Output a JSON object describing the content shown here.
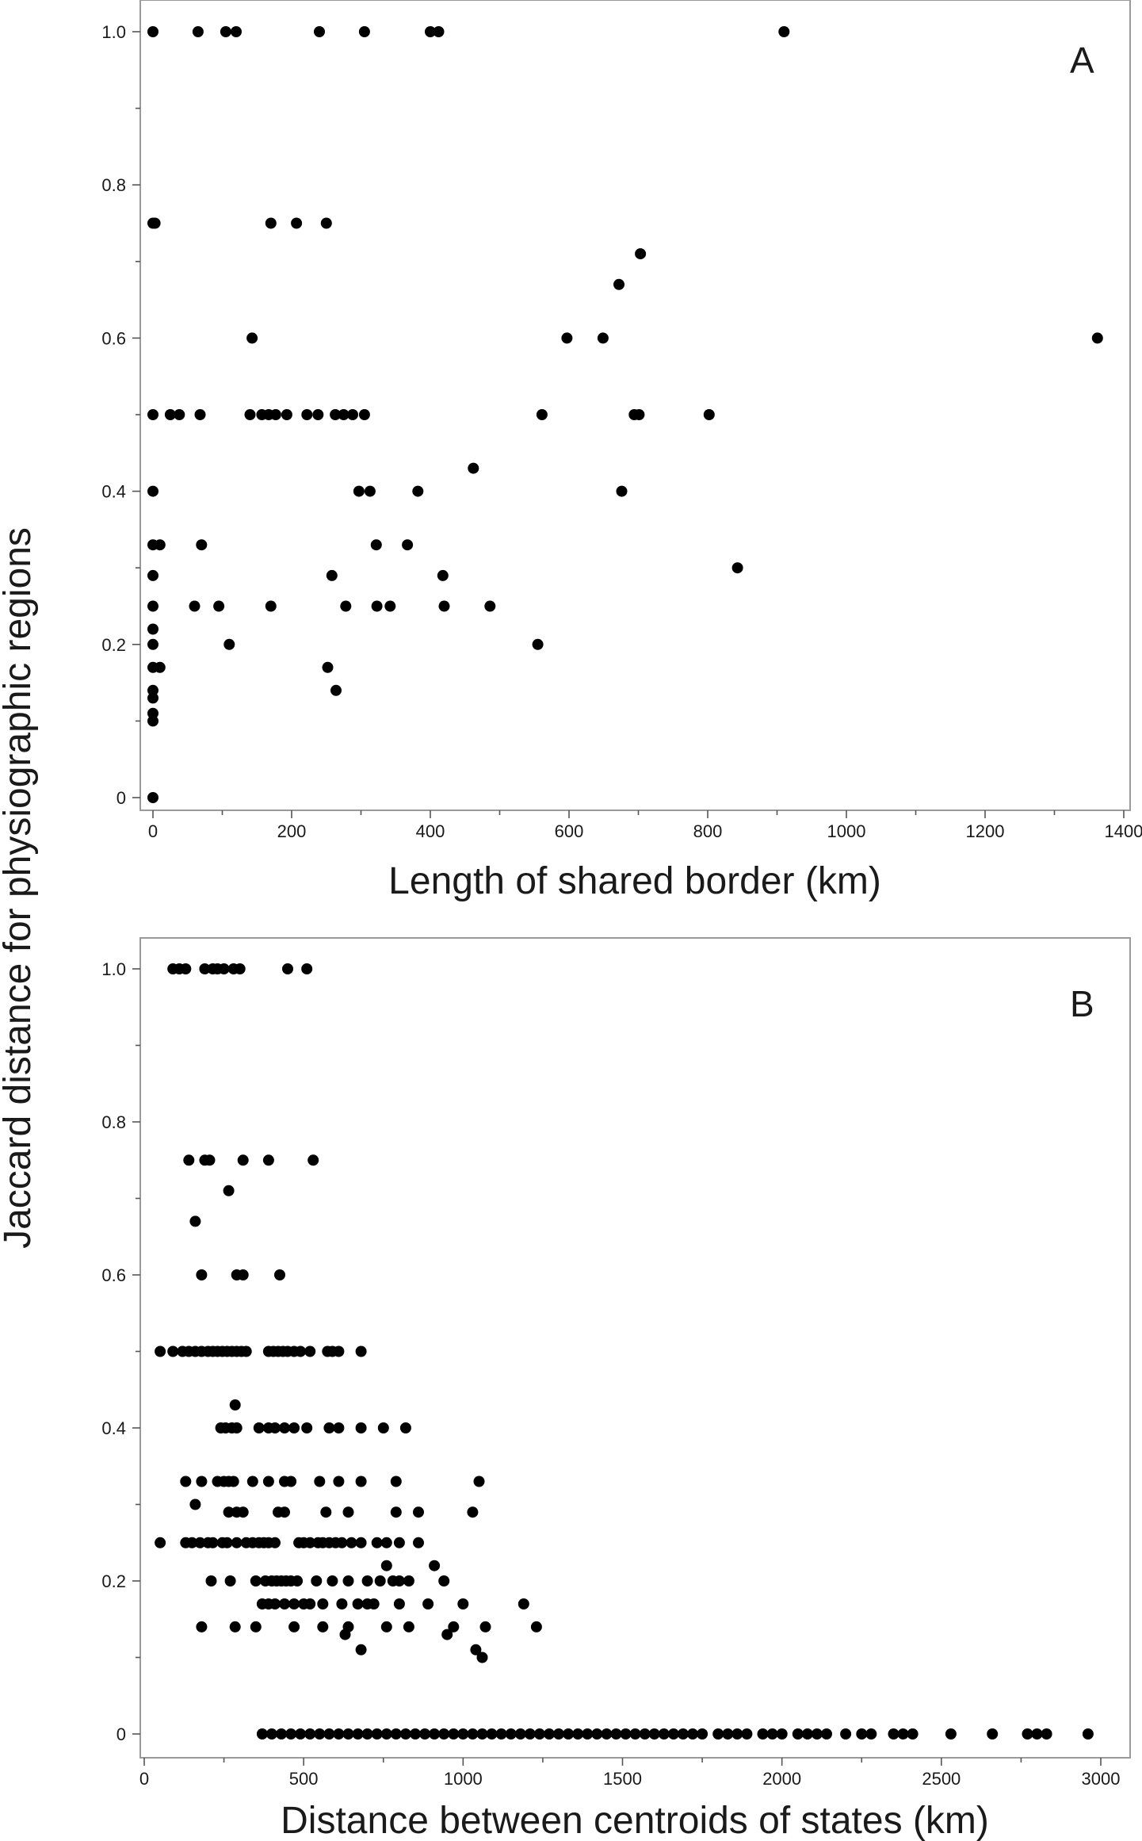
{
  "figure": {
    "ylabel": "Jaccard distance for physiographic regions"
  },
  "chart_data": [
    {
      "type": "scatter",
      "panel_label": "A",
      "xlabel": "Length of shared border (km)",
      "xlim": [
        0,
        1400
      ],
      "ylim": [
        0,
        1.0
      ],
      "x_ticks": [
        "0",
        "200",
        "400",
        "600",
        "800",
        "1000",
        "1200",
        "1400"
      ],
      "y_ticks": [
        "0",
        "0.2",
        "0.4",
        "0.6",
        "0.8",
        "1.0"
      ],
      "points": [
        [
          0,
          1.0
        ],
        [
          65,
          1.0
        ],
        [
          105,
          1.0
        ],
        [
          120,
          1.0
        ],
        [
          240,
          1.0
        ],
        [
          305,
          1.0
        ],
        [
          400,
          1.0
        ],
        [
          412,
          1.0
        ],
        [
          910,
          1.0
        ],
        [
          0,
          0.75
        ],
        [
          3,
          0.75
        ],
        [
          170,
          0.75
        ],
        [
          207,
          0.75
        ],
        [
          250,
          0.75
        ],
        [
          143,
          0.6
        ],
        [
          597,
          0.6
        ],
        [
          649,
          0.6
        ],
        [
          1362,
          0.6
        ],
        [
          703,
          0.71
        ],
        [
          672,
          0.67
        ],
        [
          0,
          0.5
        ],
        [
          25,
          0.5
        ],
        [
          38,
          0.5
        ],
        [
          68,
          0.5
        ],
        [
          140,
          0.5
        ],
        [
          157,
          0.5
        ],
        [
          167,
          0.5
        ],
        [
          177,
          0.5
        ],
        [
          193,
          0.5
        ],
        [
          222,
          0.5
        ],
        [
          238,
          0.5
        ],
        [
          263,
          0.5
        ],
        [
          275,
          0.5
        ],
        [
          288,
          0.5
        ],
        [
          305,
          0.5
        ],
        [
          561,
          0.5
        ],
        [
          694,
          0.5
        ],
        [
          701,
          0.5
        ],
        [
          802,
          0.5
        ],
        [
          0,
          0.4
        ],
        [
          297,
          0.4
        ],
        [
          313,
          0.4
        ],
        [
          382,
          0.4
        ],
        [
          676,
          0.4
        ],
        [
          462,
          0.43
        ],
        [
          0,
          0.33
        ],
        [
          10,
          0.33
        ],
        [
          70,
          0.33
        ],
        [
          322,
          0.33
        ],
        [
          367,
          0.33
        ],
        [
          0,
          0.29
        ],
        [
          258,
          0.29
        ],
        [
          418,
          0.29
        ],
        [
          0,
          0.25
        ],
        [
          60,
          0.25
        ],
        [
          95,
          0.25
        ],
        [
          170,
          0.25
        ],
        [
          278,
          0.25
        ],
        [
          323,
          0.25
        ],
        [
          342,
          0.25
        ],
        [
          420,
          0.25
        ],
        [
          486,
          0.25
        ],
        [
          843,
          0.3
        ],
        [
          0,
          0.22
        ],
        [
          0,
          0.2
        ],
        [
          110,
          0.2
        ],
        [
          555,
          0.2
        ],
        [
          0,
          0.17
        ],
        [
          10,
          0.17
        ],
        [
          252,
          0.17
        ],
        [
          264,
          0.14
        ],
        [
          0,
          0.14
        ],
        [
          0,
          0.13
        ],
        [
          0,
          0.11
        ],
        [
          0,
          0.1
        ],
        [
          0,
          0.0
        ]
      ]
    },
    {
      "type": "scatter",
      "panel_label": "B",
      "xlabel": "Distance between centroids of states (km)",
      "xlim": [
        0,
        3000
      ],
      "ylim": [
        0,
        1.0
      ],
      "x_ticks": [
        "0",
        "500",
        "1000",
        "1500",
        "2000",
        "2500",
        "3000"
      ],
      "y_ticks": [
        "0",
        "0.2",
        "0.4",
        "0.6",
        "0.8",
        "1.0"
      ],
      "points": [
        [
          90,
          1.0
        ],
        [
          110,
          1.0
        ],
        [
          130,
          1.0
        ],
        [
          190,
          1.0
        ],
        [
          215,
          1.0
        ],
        [
          230,
          1.0
        ],
        [
          250,
          1.0
        ],
        [
          280,
          1.0
        ],
        [
          300,
          1.0
        ],
        [
          450,
          1.0
        ],
        [
          510,
          1.0
        ],
        [
          140,
          0.75
        ],
        [
          190,
          0.75
        ],
        [
          205,
          0.75
        ],
        [
          310,
          0.75
        ],
        [
          390,
          0.75
        ],
        [
          530,
          0.75
        ],
        [
          265,
          0.71
        ],
        [
          160,
          0.67
        ],
        [
          180,
          0.6
        ],
        [
          290,
          0.6
        ],
        [
          310,
          0.6
        ],
        [
          425,
          0.6
        ],
        [
          50,
          0.5
        ],
        [
          90,
          0.5
        ],
        [
          120,
          0.5
        ],
        [
          140,
          0.5
        ],
        [
          160,
          0.5
        ],
        [
          180,
          0.5
        ],
        [
          200,
          0.5
        ],
        [
          215,
          0.5
        ],
        [
          230,
          0.5
        ],
        [
          245,
          0.5
        ],
        [
          260,
          0.5
        ],
        [
          275,
          0.5
        ],
        [
          290,
          0.5
        ],
        [
          305,
          0.5
        ],
        [
          320,
          0.5
        ],
        [
          390,
          0.5
        ],
        [
          405,
          0.5
        ],
        [
          420,
          0.5
        ],
        [
          435,
          0.5
        ],
        [
          450,
          0.5
        ],
        [
          470,
          0.5
        ],
        [
          490,
          0.5
        ],
        [
          520,
          0.5
        ],
        [
          575,
          0.5
        ],
        [
          590,
          0.5
        ],
        [
          610,
          0.5
        ],
        [
          680,
          0.5
        ],
        [
          285,
          0.43
        ],
        [
          240,
          0.4
        ],
        [
          255,
          0.4
        ],
        [
          275,
          0.4
        ],
        [
          290,
          0.4
        ],
        [
          360,
          0.4
        ],
        [
          390,
          0.4
        ],
        [
          410,
          0.4
        ],
        [
          440,
          0.4
        ],
        [
          470,
          0.4
        ],
        [
          510,
          0.4
        ],
        [
          580,
          0.4
        ],
        [
          610,
          0.4
        ],
        [
          680,
          0.4
        ],
        [
          750,
          0.4
        ],
        [
          820,
          0.4
        ],
        [
          130,
          0.33
        ],
        [
          180,
          0.33
        ],
        [
          230,
          0.33
        ],
        [
          250,
          0.33
        ],
        [
          265,
          0.33
        ],
        [
          280,
          0.33
        ],
        [
          340,
          0.33
        ],
        [
          390,
          0.33
        ],
        [
          440,
          0.33
        ],
        [
          460,
          0.33
        ],
        [
          550,
          0.33
        ],
        [
          610,
          0.33
        ],
        [
          680,
          0.33
        ],
        [
          790,
          0.33
        ],
        [
          1050,
          0.33
        ],
        [
          160,
          0.3
        ],
        [
          265,
          0.29
        ],
        [
          290,
          0.29
        ],
        [
          310,
          0.29
        ],
        [
          420,
          0.29
        ],
        [
          440,
          0.29
        ],
        [
          570,
          0.29
        ],
        [
          640,
          0.29
        ],
        [
          790,
          0.29
        ],
        [
          860,
          0.29
        ],
        [
          1030,
          0.29
        ],
        [
          50,
          0.25
        ],
        [
          130,
          0.25
        ],
        [
          150,
          0.25
        ],
        [
          175,
          0.25
        ],
        [
          200,
          0.25
        ],
        [
          215,
          0.25
        ],
        [
          245,
          0.25
        ],
        [
          260,
          0.25
        ],
        [
          290,
          0.25
        ],
        [
          320,
          0.25
        ],
        [
          340,
          0.25
        ],
        [
          360,
          0.25
        ],
        [
          375,
          0.25
        ],
        [
          390,
          0.25
        ],
        [
          410,
          0.25
        ],
        [
          485,
          0.25
        ],
        [
          500,
          0.25
        ],
        [
          520,
          0.25
        ],
        [
          545,
          0.25
        ],
        [
          560,
          0.25
        ],
        [
          580,
          0.25
        ],
        [
          600,
          0.25
        ],
        [
          620,
          0.25
        ],
        [
          650,
          0.25
        ],
        [
          680,
          0.25
        ],
        [
          730,
          0.25
        ],
        [
          760,
          0.25
        ],
        [
          800,
          0.25
        ],
        [
          860,
          0.25
        ],
        [
          760,
          0.22
        ],
        [
          910,
          0.22
        ],
        [
          210,
          0.2
        ],
        [
          270,
          0.2
        ],
        [
          350,
          0.2
        ],
        [
          380,
          0.2
        ],
        [
          400,
          0.2
        ],
        [
          415,
          0.2
        ],
        [
          430,
          0.2
        ],
        [
          445,
          0.2
        ],
        [
          460,
          0.2
        ],
        [
          480,
          0.2
        ],
        [
          540,
          0.2
        ],
        [
          590,
          0.2
        ],
        [
          640,
          0.2
        ],
        [
          700,
          0.2
        ],
        [
          740,
          0.2
        ],
        [
          780,
          0.2
        ],
        [
          800,
          0.2
        ],
        [
          830,
          0.2
        ],
        [
          940,
          0.2
        ],
        [
          370,
          0.17
        ],
        [
          390,
          0.17
        ],
        [
          410,
          0.17
        ],
        [
          440,
          0.17
        ],
        [
          470,
          0.17
        ],
        [
          500,
          0.17
        ],
        [
          520,
          0.17
        ],
        [
          560,
          0.17
        ],
        [
          620,
          0.17
        ],
        [
          670,
          0.17
        ],
        [
          700,
          0.17
        ],
        [
          720,
          0.17
        ],
        [
          800,
          0.17
        ],
        [
          890,
          0.17
        ],
        [
          1000,
          0.17
        ],
        [
          1190,
          0.17
        ],
        [
          180,
          0.14
        ],
        [
          285,
          0.14
        ],
        [
          350,
          0.14
        ],
        [
          470,
          0.14
        ],
        [
          560,
          0.14
        ],
        [
          640,
          0.14
        ],
        [
          760,
          0.14
        ],
        [
          830,
          0.14
        ],
        [
          970,
          0.14
        ],
        [
          1070,
          0.14
        ],
        [
          1230,
          0.14
        ],
        [
          630,
          0.13
        ],
        [
          950,
          0.13
        ],
        [
          680,
          0.11
        ],
        [
          1040,
          0.11
        ],
        [
          1060,
          0.1
        ],
        [
          370,
          0
        ],
        [
          400,
          0
        ],
        [
          430,
          0
        ],
        [
          460,
          0
        ],
        [
          490,
          0
        ],
        [
          520,
          0
        ],
        [
          550,
          0
        ],
        [
          580,
          0
        ],
        [
          610,
          0
        ],
        [
          640,
          0
        ],
        [
          670,
          0
        ],
        [
          700,
          0
        ],
        [
          730,
          0
        ],
        [
          760,
          0
        ],
        [
          790,
          0
        ],
        [
          820,
          0
        ],
        [
          850,
          0
        ],
        [
          880,
          0
        ],
        [
          910,
          0
        ],
        [
          940,
          0
        ],
        [
          970,
          0
        ],
        [
          1000,
          0
        ],
        [
          1030,
          0
        ],
        [
          1060,
          0
        ],
        [
          1090,
          0
        ],
        [
          1120,
          0
        ],
        [
          1150,
          0
        ],
        [
          1180,
          0
        ],
        [
          1210,
          0
        ],
        [
          1240,
          0
        ],
        [
          1270,
          0
        ],
        [
          1300,
          0
        ],
        [
          1330,
          0
        ],
        [
          1360,
          0
        ],
        [
          1390,
          0
        ],
        [
          1420,
          0
        ],
        [
          1450,
          0
        ],
        [
          1480,
          0
        ],
        [
          1510,
          0
        ],
        [
          1540,
          0
        ],
        [
          1570,
          0
        ],
        [
          1600,
          0
        ],
        [
          1630,
          0
        ],
        [
          1660,
          0
        ],
        [
          1690,
          0
        ],
        [
          1720,
          0
        ],
        [
          1750,
          0
        ],
        [
          1800,
          0
        ],
        [
          1830,
          0
        ],
        [
          1860,
          0
        ],
        [
          1890,
          0
        ],
        [
          1940,
          0
        ],
        [
          1970,
          0
        ],
        [
          2000,
          0
        ],
        [
          2050,
          0
        ],
        [
          2080,
          0
        ],
        [
          2110,
          0
        ],
        [
          2140,
          0
        ],
        [
          2200,
          0
        ],
        [
          2250,
          0
        ],
        [
          2280,
          0
        ],
        [
          2350,
          0
        ],
        [
          2380,
          0
        ],
        [
          2410,
          0
        ],
        [
          2530,
          0
        ],
        [
          2660,
          0
        ],
        [
          2770,
          0
        ],
        [
          2800,
          0
        ],
        [
          2830,
          0
        ],
        [
          2960,
          0
        ]
      ]
    }
  ]
}
